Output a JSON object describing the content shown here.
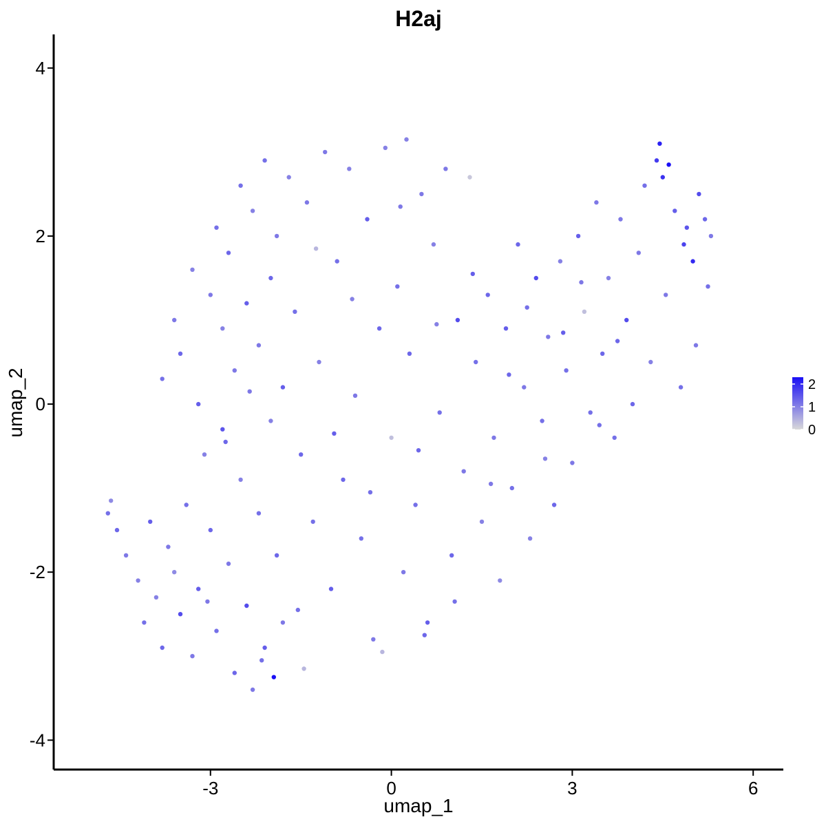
{
  "chart_data": {
    "type": "scatter",
    "title": "H2aj",
    "xlabel": "umap_1",
    "ylabel": "umap_2",
    "xlim": [
      -5.6,
      6.5
    ],
    "ylim": [
      -4.35,
      4.4
    ],
    "x_ticks": [
      -3,
      0,
      3,
      6
    ],
    "y_ticks": [
      -4,
      -2,
      0,
      2,
      4
    ],
    "x_tick_labels": [
      "-3",
      "0",
      "3",
      "6"
    ],
    "y_tick_labels": [
      "-4",
      "-2",
      "0",
      "2",
      "4"
    ],
    "grid": false,
    "legend": {
      "placement": "right",
      "type": "colorbar",
      "min": 0,
      "max": 2.3,
      "ticks": [
        0,
        1,
        2
      ],
      "tick_labels": [
        "0",
        "1",
        "2"
      ],
      "color_low": "#d9d9d9",
      "color_high": "#1a0ff5"
    },
    "colors": {
      "low": "#d9d9d9",
      "high": "#1a0ff5"
    },
    "points": [
      [
        -4.7,
        -1.3,
        1.2
      ],
      [
        -4.65,
        -1.15,
        0.9
      ],
      [
        -4.55,
        -1.5,
        1.3
      ],
      [
        -4.4,
        -1.8,
        1.1
      ],
      [
        -4.2,
        -2.1,
        1.0
      ],
      [
        -4.1,
        -2.6,
        1.2
      ],
      [
        -4.0,
        -1.4,
        1.4
      ],
      [
        -3.9,
        -2.3,
        1.0
      ],
      [
        -3.8,
        -2.9,
        1.3
      ],
      [
        -3.7,
        -1.7,
        1.1
      ],
      [
        -3.6,
        -2.0,
        0.9
      ],
      [
        -3.5,
        -2.5,
        1.6
      ],
      [
        -3.4,
        -1.2,
        1.2
      ],
      [
        -3.3,
        -3.0,
        1.1
      ],
      [
        -3.2,
        -2.2,
        1.4
      ],
      [
        -3.1,
        -0.6,
        1.0
      ],
      [
        -3.0,
        -1.5,
        1.3
      ],
      [
        -2.9,
        -2.7,
        1.2
      ],
      [
        -2.8,
        -0.3,
        1.5
      ],
      [
        -2.7,
        -1.9,
        1.1
      ],
      [
        -2.6,
        -3.2,
        1.3
      ],
      [
        -2.5,
        -0.9,
        1.0
      ],
      [
        -2.4,
        -2.4,
        1.6
      ],
      [
        -2.3,
        -3.4,
        1.1
      ],
      [
        -2.2,
        -1.3,
        1.2
      ],
      [
        -2.1,
        -2.9,
        1.4
      ],
      [
        -2.0,
        -0.2,
        1.0
      ],
      [
        -1.95,
        -3.25,
        2.3
      ],
      [
        -1.9,
        -1.8,
        1.3
      ],
      [
        -1.8,
        -2.6,
        1.1
      ],
      [
        -3.8,
        0.3,
        1.2
      ],
      [
        -3.6,
        1.0,
        1.1
      ],
      [
        -3.5,
        0.6,
        1.3
      ],
      [
        -3.3,
        1.6,
        1.0
      ],
      [
        -3.2,
        0.0,
        1.4
      ],
      [
        -3.0,
        1.3,
        1.1
      ],
      [
        -2.9,
        2.1,
        1.2
      ],
      [
        -2.8,
        0.9,
        1.0
      ],
      [
        -2.7,
        1.8,
        1.3
      ],
      [
        -2.6,
        0.4,
        1.1
      ],
      [
        -2.5,
        2.6,
        1.2
      ],
      [
        -2.4,
        1.2,
        1.4
      ],
      [
        -2.3,
        2.3,
        1.0
      ],
      [
        -2.2,
        0.7,
        1.1
      ],
      [
        -2.1,
        2.9,
        1.2
      ],
      [
        -2.0,
        1.5,
        1.3
      ],
      [
        -1.9,
        2.0,
        1.1
      ],
      [
        -1.8,
        0.2,
        1.4
      ],
      [
        -1.7,
        2.7,
        1.0
      ],
      [
        -1.6,
        1.1,
        1.2
      ],
      [
        -1.5,
        -0.6,
        1.3
      ],
      [
        -1.4,
        2.4,
        1.1
      ],
      [
        -1.3,
        -1.4,
        1.2
      ],
      [
        -1.2,
        0.5,
        1.0
      ],
      [
        -1.1,
        3.0,
        1.1
      ],
      [
        -1.0,
        -2.2,
        1.4
      ],
      [
        -0.9,
        1.7,
        1.2
      ],
      [
        -0.8,
        -0.9,
        1.3
      ],
      [
        -0.7,
        2.8,
        1.0
      ],
      [
        -0.6,
        0.1,
        1.1
      ],
      [
        -0.5,
        -1.6,
        1.2
      ],
      [
        -0.4,
        2.2,
        1.4
      ],
      [
        -0.3,
        -2.8,
        1.1
      ],
      [
        -0.2,
        0.9,
        1.3
      ],
      [
        -0.1,
        3.05,
        1.0
      ],
      [
        0.0,
        -0.4,
        0.3
      ],
      [
        0.1,
        1.4,
        1.2
      ],
      [
        0.2,
        -2.0,
        1.1
      ],
      [
        0.25,
        3.15,
        1.0
      ],
      [
        0.3,
        0.6,
        1.3
      ],
      [
        0.4,
        -1.2,
        1.2
      ],
      [
        0.5,
        2.5,
        1.1
      ],
      [
        0.6,
        -2.6,
        1.4
      ],
      [
        0.7,
        1.9,
        1.0
      ],
      [
        0.8,
        -0.1,
        1.2
      ],
      [
        0.9,
        2.8,
        1.1
      ],
      [
        1.0,
        -1.8,
        1.3
      ],
      [
        1.1,
        1.0,
        1.6
      ],
      [
        1.2,
        -0.8,
        1.1
      ],
      [
        1.3,
        2.7,
        0.2
      ],
      [
        1.4,
        0.5,
        1.2
      ],
      [
        1.5,
        -1.4,
        1.0
      ],
      [
        1.6,
        1.3,
        1.3
      ],
      [
        1.7,
        -0.4,
        1.1
      ],
      [
        1.8,
        -2.1,
        0.9
      ],
      [
        1.9,
        0.9,
        1.4
      ],
      [
        2.0,
        -1.0,
        1.2
      ],
      [
        2.1,
        1.9,
        1.3
      ],
      [
        2.2,
        0.2,
        1.1
      ],
      [
        2.3,
        -1.6,
        1.0
      ],
      [
        2.4,
        1.5,
        1.6
      ],
      [
        2.5,
        -0.2,
        1.2
      ],
      [
        2.6,
        0.8,
        1.1
      ],
      [
        2.7,
        -1.2,
        1.3
      ],
      [
        2.8,
        1.7,
        1.0
      ],
      [
        2.9,
        0.4,
        1.2
      ],
      [
        3.0,
        -0.7,
        1.1
      ],
      [
        3.1,
        2.0,
        1.4
      ],
      [
        3.2,
        1.1,
        0.3
      ],
      [
        3.3,
        -0.1,
        1.2
      ],
      [
        3.4,
        2.4,
        1.1
      ],
      [
        3.5,
        0.6,
        1.3
      ],
      [
        3.6,
        1.5,
        1.0
      ],
      [
        3.7,
        -0.4,
        1.2
      ],
      [
        3.8,
        2.2,
        1.1
      ],
      [
        3.9,
        1.0,
        1.6
      ],
      [
        4.0,
        0.0,
        1.3
      ],
      [
        4.1,
        1.8,
        1.1
      ],
      [
        4.2,
        2.6,
        1.2
      ],
      [
        4.3,
        0.5,
        1.0
      ],
      [
        4.4,
        2.9,
        1.8
      ],
      [
        4.45,
        3.1,
        2.1
      ],
      [
        4.5,
        2.7,
        1.9
      ],
      [
        4.55,
        1.3,
        1.1
      ],
      [
        4.6,
        2.85,
        2.3
      ],
      [
        4.7,
        2.3,
        1.4
      ],
      [
        4.8,
        0.2,
        1.2
      ],
      [
        4.85,
        1.9,
        1.7
      ],
      [
        4.9,
        2.1,
        1.5
      ],
      [
        5.0,
        1.7,
        2.0
      ],
      [
        5.05,
        0.7,
        1.1
      ],
      [
        5.1,
        2.5,
        1.6
      ],
      [
        5.2,
        2.2,
        1.3
      ],
      [
        5.25,
        1.4,
        1.2
      ],
      [
        5.3,
        2.0,
        1.1
      ],
      [
        -2.75,
        -0.45,
        1.3
      ],
      [
        -2.35,
        0.15,
        1.1
      ],
      [
        -1.55,
        -2.45,
        1.2
      ],
      [
        -1.25,
        1.85,
        0.4
      ],
      [
        -0.95,
        -0.35,
        1.4
      ],
      [
        -0.65,
        1.25,
        1.0
      ],
      [
        -0.35,
        -1.05,
        1.2
      ],
      [
        0.15,
        2.35,
        1.1
      ],
      [
        0.45,
        -0.55,
        1.3
      ],
      [
        0.75,
        0.95,
        1.0
      ],
      [
        1.05,
        -2.35,
        1.2
      ],
      [
        1.35,
        1.55,
        1.4
      ],
      [
        1.65,
        -0.95,
        1.1
      ],
      [
        1.95,
        0.35,
        1.3
      ],
      [
        2.25,
        1.15,
        1.2
      ],
      [
        2.55,
        -0.65,
        1.0
      ],
      [
        2.85,
        0.85,
        1.4
      ],
      [
        3.15,
        1.45,
        1.1
      ],
      [
        3.45,
        -0.25,
        1.2
      ],
      [
        3.75,
        0.75,
        1.3
      ],
      [
        -1.45,
        -3.15,
        0.4
      ],
      [
        -0.15,
        -2.95,
        0.4
      ],
      [
        0.55,
        -2.75,
        1.3
      ],
      [
        -2.15,
        -3.05,
        1.2
      ],
      [
        -3.05,
        -2.35,
        1.1
      ]
    ]
  }
}
